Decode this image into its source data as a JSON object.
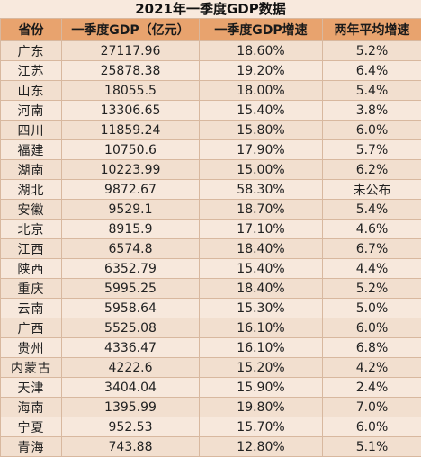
{
  "title": "2021年一季度GDP数据",
  "headers": {
    "province": "省份",
    "gdp": "一季度GDP（亿元）",
    "growth": "一季度GDP增速",
    "avg_two_year": "两年平均增速"
  },
  "rows": [
    {
      "province": "广东",
      "gdp": "27117.96",
      "growth": "18.60%",
      "avg_two_year": "5.2%"
    },
    {
      "province": "江苏",
      "gdp": "25878.38",
      "growth": "19.20%",
      "avg_two_year": "6.4%"
    },
    {
      "province": "山东",
      "gdp": "18055.5",
      "growth": "18.00%",
      "avg_two_year": "5.4%"
    },
    {
      "province": "河南",
      "gdp": "13306.65",
      "growth": "15.40%",
      "avg_two_year": "3.8%"
    },
    {
      "province": "四川",
      "gdp": "11859.24",
      "growth": "15.80%",
      "avg_two_year": "6.0%"
    },
    {
      "province": "福建",
      "gdp": "10750.6",
      "growth": "17.90%",
      "avg_two_year": "5.7%"
    },
    {
      "province": "湖南",
      "gdp": "10223.99",
      "growth": "15.00%",
      "avg_two_year": "6.2%"
    },
    {
      "province": "湖北",
      "gdp": "9872.67",
      "growth": "58.30%",
      "avg_two_year": "未公布"
    },
    {
      "province": "安徽",
      "gdp": "9529.1",
      "growth": "18.70%",
      "avg_two_year": "5.4%"
    },
    {
      "province": "北京",
      "gdp": "8915.9",
      "growth": "17.10%",
      "avg_two_year": "4.6%"
    },
    {
      "province": "江西",
      "gdp": "6574.8",
      "growth": "18.40%",
      "avg_two_year": "6.7%"
    },
    {
      "province": "陕西",
      "gdp": "6352.79",
      "growth": "15.40%",
      "avg_two_year": "4.4%"
    },
    {
      "province": "重庆",
      "gdp": "5995.25",
      "growth": "18.40%",
      "avg_two_year": "5.2%"
    },
    {
      "province": "云南",
      "gdp": "5958.64",
      "growth": "15.30%",
      "avg_two_year": "5.0%"
    },
    {
      "province": "广西",
      "gdp": "5525.08",
      "growth": "16.10%",
      "avg_two_year": "6.0%"
    },
    {
      "province": "贵州",
      "gdp": "4336.47",
      "growth": "16.10%",
      "avg_two_year": "6.8%"
    },
    {
      "province": "内蒙古",
      "gdp": "4222.6",
      "growth": "15.20%",
      "avg_two_year": "4.2%"
    },
    {
      "province": "天津",
      "gdp": "3404.04",
      "growth": "15.90%",
      "avg_two_year": "2.4%"
    },
    {
      "province": "海南",
      "gdp": "1395.99",
      "growth": "19.80%",
      "avg_two_year": "7.0%"
    },
    {
      "province": "宁夏",
      "gdp": "952.53",
      "growth": "15.70%",
      "avg_two_year": "6.0%"
    },
    {
      "province": "青海",
      "gdp": "743.88",
      "growth": "12.80%",
      "avg_two_year": "5.1%"
    }
  ]
}
